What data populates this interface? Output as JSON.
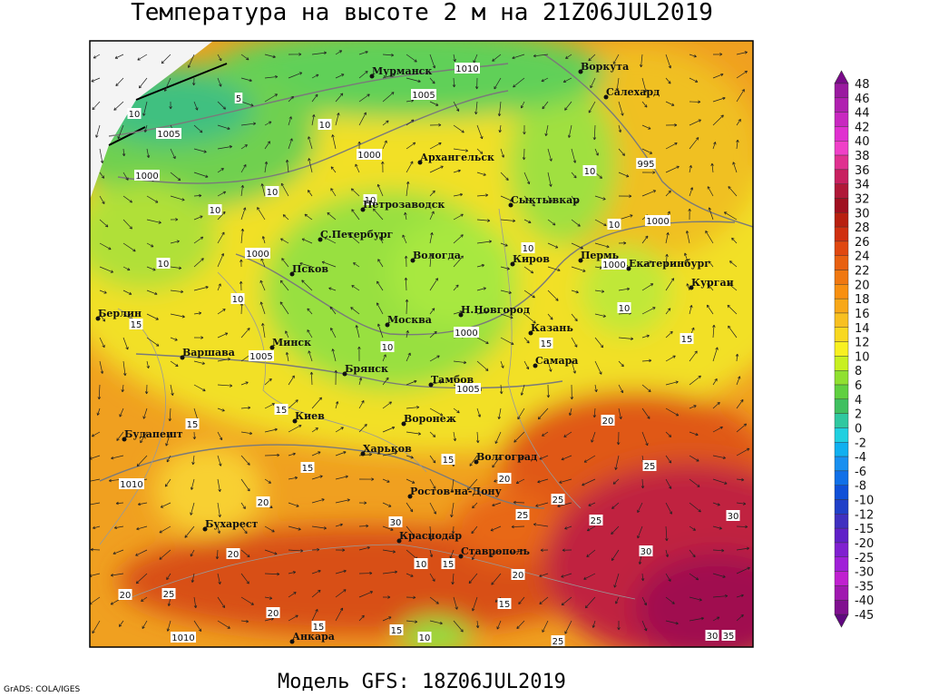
{
  "header": {
    "title": "Температура на высоте 2 м на 21Z06JUL2019"
  },
  "footer": {
    "model": "Модель GFS: 18Z06JUL2019",
    "credit": "GrADS: COLA/IGES"
  },
  "colorbar": {
    "labels": [
      48,
      46,
      44,
      42,
      40,
      38,
      36,
      34,
      32,
      30,
      28,
      26,
      24,
      22,
      20,
      18,
      16,
      14,
      12,
      10,
      8,
      6,
      4,
      2,
      0,
      -2,
      -4,
      -6,
      -8,
      -10,
      -12,
      -15,
      -20,
      -25,
      -30,
      -35,
      -40,
      -45
    ],
    "colors": [
      "#7a0a8a",
      "#9a1aa0",
      "#b020b0",
      "#c828c0",
      "#e030d0",
      "#f040c8",
      "#e03090",
      "#c82060",
      "#b01838",
      "#a01020",
      "#b82010",
      "#d03010",
      "#e04810",
      "#e86010",
      "#f07810",
      "#f89010",
      "#f8a818",
      "#f8c020",
      "#f8d820",
      "#f8f020",
      "#c8f020",
      "#90e030",
      "#60d040",
      "#40c060",
      "#30c8a0",
      "#20d0e0",
      "#10b0f0",
      "#1890f0",
      "#1070e8",
      "#1050d8",
      "#2040c8",
      "#4030c0",
      "#6020c8",
      "#8020d0",
      "#a020d8",
      "#c020d0",
      "#a018b0",
      "#801090",
      "#600880"
    ]
  },
  "cities": [
    "Мурманск",
    "Воркута",
    "Салехард",
    "Архангельск",
    "Петрозаводск",
    "Сыктывкар",
    "С.Петербург",
    "Вологда",
    "Киров",
    "Пермь",
    "Екатеринбург",
    "Курган",
    "Псков",
    "Берлин",
    "Н.Новгород",
    "Москва",
    "Казань",
    "Минск",
    "Варшава",
    "Брянск",
    "Самара",
    "Тамбов",
    "Киев",
    "Воронеж",
    "Будапешт",
    "Харьков",
    "Волгоград",
    "Ростов-на-Дону",
    "Бухарест",
    "Краснодар",
    "Ставрополь",
    "Анкара"
  ],
  "isobar_labels": [
    1010,
    1005,
    1005,
    1000,
    1000,
    995,
    1000,
    1000,
    1000,
    1000,
    1005,
    1005,
    1010,
    1010
  ],
  "isotherm_labels": [
    5,
    10,
    10,
    10,
    10,
    10,
    10,
    10,
    10,
    10,
    10,
    10,
    15,
    15,
    15,
    10,
    15,
    20,
    15,
    15,
    15,
    20,
    25,
    20,
    25,
    30,
    25,
    25,
    30,
    20,
    30,
    10,
    15,
    20,
    20,
    25,
    15,
    20,
    15,
    15,
    10,
    25,
    30,
    35
  ]
}
